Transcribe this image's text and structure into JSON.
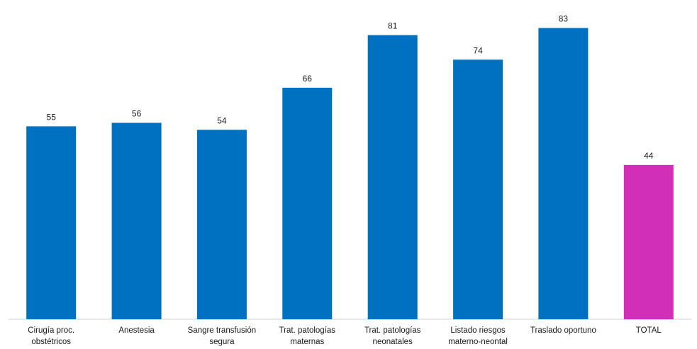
{
  "chart_data": {
    "type": "bar",
    "title": "",
    "xlabel": "",
    "ylabel": "",
    "ylim": [
      0,
      91
    ],
    "grid": false,
    "legend": "none",
    "categories": [
      [
        "Cirugía proc.",
        "obstétricos"
      ],
      [
        "Anestesia"
      ],
      [
        "Sangre transfusión",
        "segura"
      ],
      [
        "Trat. patologías",
        "maternas"
      ],
      [
        "Trat. patologías",
        "neonatales"
      ],
      [
        "Listado riesgos",
        "materno-neontal"
      ],
      [
        "Traslado oportuno"
      ],
      [
        "TOTAL"
      ]
    ],
    "values": [
      55,
      56,
      54,
      66,
      81,
      74,
      83,
      44
    ],
    "data_labels": [
      "55",
      "56",
      "54",
      "66",
      "81",
      "74",
      "83",
      "44"
    ],
    "colors": {
      "default": "#0070c0",
      "highlight": "#d12fb8"
    },
    "highlight_index": 7
  }
}
